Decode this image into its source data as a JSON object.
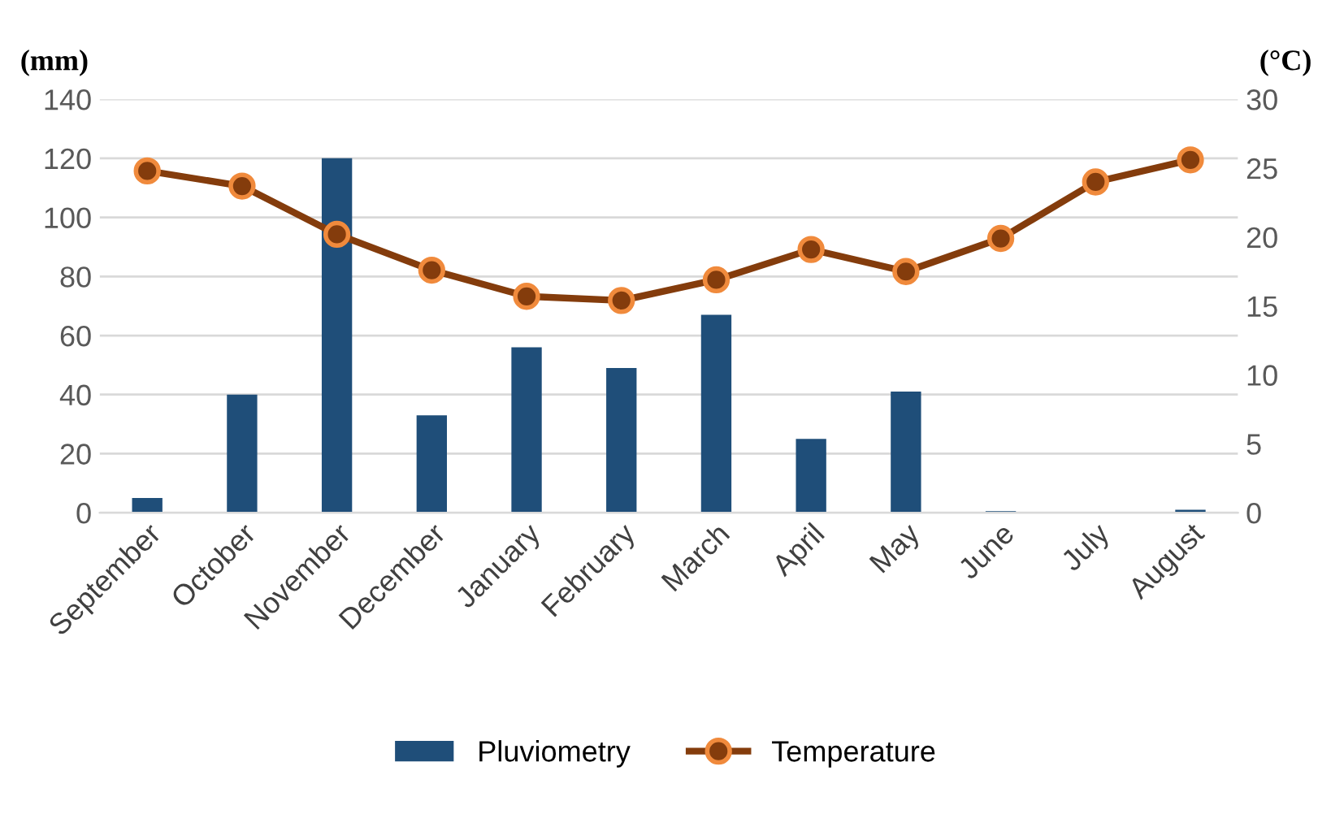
{
  "chart_data": {
    "type": "bar",
    "categories": [
      "September",
      "October",
      "November",
      "December",
      "January",
      "February",
      "March",
      "April",
      "May",
      "June",
      "July",
      "August"
    ],
    "series": [
      {
        "name": "Pluviometry",
        "color": "#1f4e79",
        "values": [
          5,
          40,
          120,
          33,
          56,
          49,
          67,
          25,
          41,
          0.5,
          0,
          1
        ]
      },
      {
        "name": "Temperature",
        "type": "line",
        "axis": "y2",
        "color": "#843c0c",
        "marker": "circle",
        "values": [
          24.8,
          23.7,
          20.2,
          17.6,
          15.7,
          15.4,
          16.9,
          19.1,
          17.5,
          19.9,
          24.0,
          25.6
        ]
      }
    ],
    "ylabel": "(mm)",
    "y2label": "(°C)",
    "ylim": [
      0,
      140
    ],
    "yticks": [
      0,
      20,
      40,
      60,
      80,
      100,
      120,
      140
    ],
    "y2lim": [
      0,
      30
    ],
    "y2ticks": [
      0,
      5,
      10,
      15,
      20,
      25,
      30
    ],
    "grid": "y",
    "legend": "bottom"
  }
}
